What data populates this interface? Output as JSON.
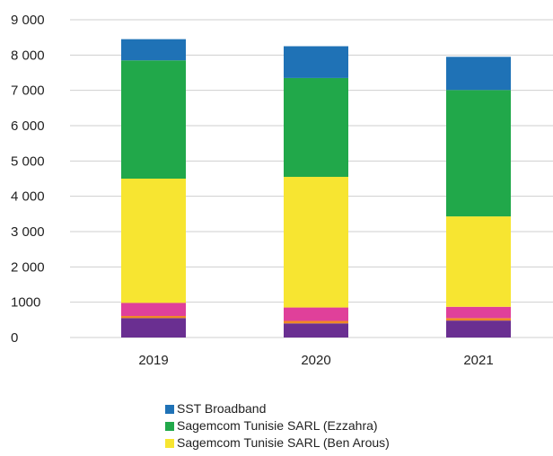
{
  "chart_data": {
    "type": "bar",
    "stacked": true,
    "categories": [
      "2019",
      "2020",
      "2021"
    ],
    "series": [
      {
        "key": "purple",
        "values": [
          550,
          400,
          480
        ],
        "color": "#6a2f91"
      },
      {
        "key": "orange",
        "values": [
          60,
          70,
          70
        ],
        "color": "#f08a24"
      },
      {
        "key": "magenta",
        "values": [
          370,
          380,
          320
        ],
        "color": "#e0409a"
      },
      {
        "name": "Sagemcom Tunisie SARL (Ben Arous)",
        "values": [
          3520,
          3700,
          2560
        ],
        "color": "#f7e531"
      },
      {
        "name": "Sagemcom Tunisie SARL (Ezzahra)",
        "values": [
          3350,
          2800,
          3580
        ],
        "color": "#21a84a"
      },
      {
        "name": "SST Broadband",
        "values": [
          600,
          900,
          940
        ],
        "color": "#1f72b6"
      }
    ],
    "yticks": [
      "0",
      "1000",
      "2 000",
      "3 000",
      "4 000",
      "5 000",
      "6 000",
      "7 000",
      "8 000",
      "9 000"
    ],
    "ylim": [
      0,
      9000
    ],
    "grid": true,
    "legend_position": "bottom"
  }
}
